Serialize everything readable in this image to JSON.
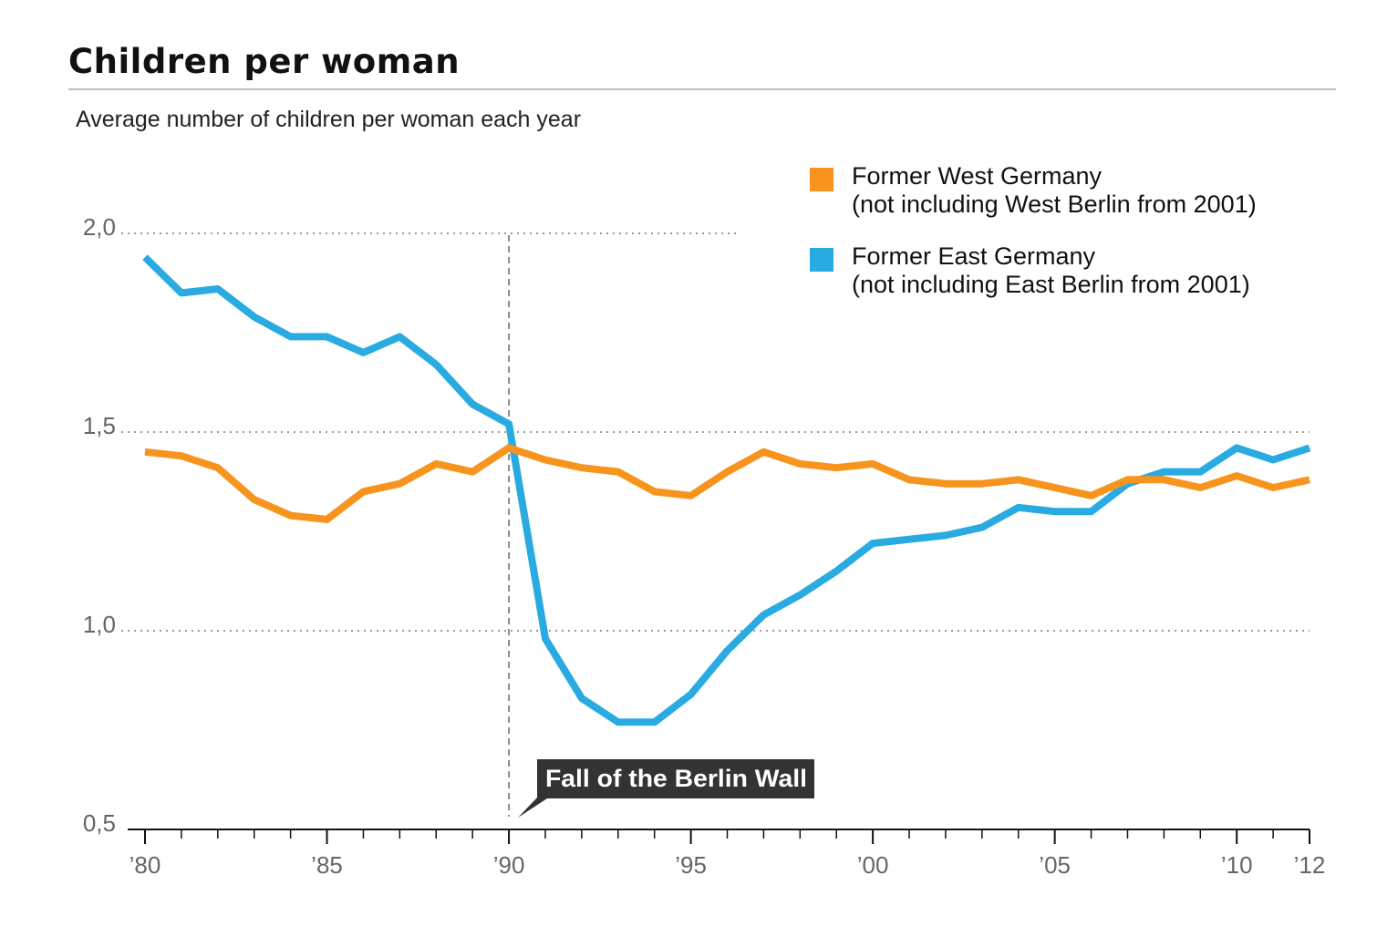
{
  "title": "Children per woman",
  "subtitle": "Average number of children per woman each year",
  "legend": [
    {
      "line1": "Former West Germany",
      "line2": "(not including West Berlin from 2001)",
      "color": "#f7941d"
    },
    {
      "line1": "Former East Germany",
      "line2": "(not including East Berlin from 2001)",
      "color": "#29abe2"
    }
  ],
  "annotation": {
    "label": "Fall of the  Berlin Wall",
    "x": 1990
  },
  "chart_data": {
    "type": "line",
    "title": "Children per woman",
    "subtitle": "Average number of children per woman each year",
    "x": [
      1980,
      1981,
      1982,
      1983,
      1984,
      1985,
      1986,
      1987,
      1988,
      1989,
      1990,
      1991,
      1992,
      1993,
      1994,
      1995,
      1996,
      1997,
      1998,
      1999,
      2000,
      2001,
      2002,
      2003,
      2004,
      2005,
      2006,
      2007,
      2008,
      2009,
      2010,
      2011,
      2012
    ],
    "x_tick_values": [
      1980,
      1985,
      1990,
      1995,
      2000,
      2005,
      2010,
      2012
    ],
    "x_tick_labels": [
      "’80",
      "’85",
      "’90",
      "’95",
      "’00",
      "’05",
      "’10",
      "’12"
    ],
    "y_tick_values": [
      0.5,
      1.0,
      1.5,
      2.0
    ],
    "y_tick_labels": [
      "0,5",
      "1,0",
      "1,5",
      "2,0"
    ],
    "xlim": [
      1980,
      2012
    ],
    "ylim": [
      0.5,
      2.0
    ],
    "grid": "horizontal dotted",
    "legend_position": "top-right",
    "series": [
      {
        "name": "Former West Germany",
        "color": "#f7941d",
        "values": [
          1.45,
          1.44,
          1.41,
          1.33,
          1.29,
          1.28,
          1.35,
          1.37,
          1.42,
          1.4,
          1.46,
          1.43,
          1.41,
          1.4,
          1.35,
          1.34,
          1.4,
          1.45,
          1.42,
          1.41,
          1.42,
          1.38,
          1.37,
          1.37,
          1.38,
          1.36,
          1.34,
          1.38,
          1.38,
          1.36,
          1.39,
          1.36,
          1.38
        ]
      },
      {
        "name": "Former East Germany",
        "color": "#29abe2",
        "values": [
          1.94,
          1.85,
          1.86,
          1.79,
          1.74,
          1.74,
          1.7,
          1.74,
          1.67,
          1.57,
          1.52,
          0.98,
          0.83,
          0.77,
          0.77,
          0.84,
          0.95,
          1.04,
          1.09,
          1.15,
          1.22,
          1.23,
          1.24,
          1.26,
          1.31,
          1.3,
          1.3,
          1.37,
          1.4,
          1.4,
          1.46,
          1.43,
          1.46
        ]
      }
    ]
  }
}
